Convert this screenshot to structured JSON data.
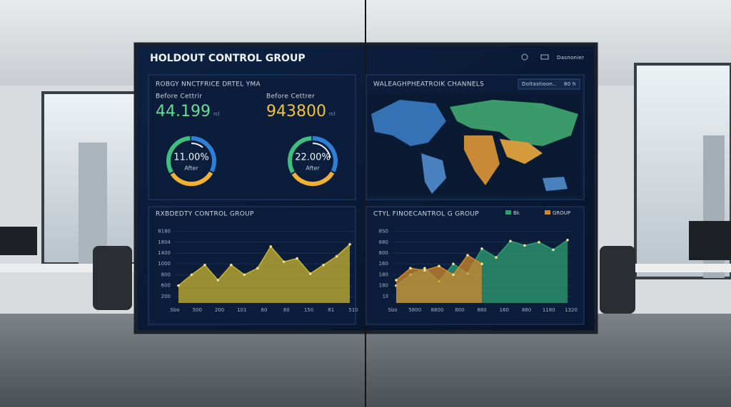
{
  "header": {
    "title": "HOLDOUT CONTROL GROUP",
    "menu": "Dasnonier"
  },
  "panels": [
    {
      "title": "ROBGY NNCTFRICE DRTEL YMA",
      "kpis": [
        {
          "label": "Before Cettrir",
          "value": 44.199,
          "unit": "rcl"
        },
        {
          "label": "Before Cettrer",
          "value": 943800,
          "unit": "rcl"
        }
      ],
      "gauges": [
        {
          "value": 11,
          "label": "11.00%",
          "sublabel": "After"
        },
        {
          "value": 22,
          "label": "22.00%",
          "sublabel": "After"
        }
      ]
    },
    {
      "title": "WALEAGHPHEATROIK CHANNELS",
      "filter": "Doltastioon..",
      "range": "80 h"
    },
    {
      "title": "RXBDEDTY CONTROL GROUP",
      "chart": {
        "ylim": [
          -0.6,
          6.3
        ],
        "yticks": [
          {
            "value": 0,
            "label": "200"
          },
          {
            "value": 1,
            "label": "600"
          },
          {
            "value": 2,
            "label": "800"
          },
          {
            "value": 3,
            "label": "1000"
          },
          {
            "value": 4,
            "label": "1400"
          },
          {
            "value": 5,
            "label": "1804"
          },
          {
            "value": 6,
            "label": "8180"
          }
        ],
        "xlabels": [
          "Sbo",
          "500",
          "200",
          "101",
          "60",
          "80",
          "150",
          "81",
          "510"
        ],
        "series": [
          {
            "color": "#c9b431",
            "values": [
              1.0,
              2.0,
              2.9,
              1.5,
              2.9,
              2.0,
              2.6,
              4.6,
              3.2,
              3.5,
              2.1,
              2.9,
              3.7,
              4.8
            ]
          }
        ]
      }
    },
    {
      "title": "CTYL FINOECANTROL G GROUP",
      "chart": {
        "ylim": [
          -0.6,
          6.3
        ],
        "yticks": [
          {
            "value": 0,
            "label": "1ll"
          },
          {
            "value": 1,
            "label": "180"
          },
          {
            "value": 2,
            "label": "180"
          },
          {
            "value": 3,
            "label": "160"
          },
          {
            "value": 4,
            "label": "800"
          },
          {
            "value": 5,
            "label": "880"
          },
          {
            "value": 6,
            "label": "8S0"
          }
        ],
        "xlabels": [
          "Sbo",
          "5800",
          "8800",
          "800",
          "880",
          "160",
          "880",
          "1180",
          "1320"
        ],
        "series": [
          {
            "name": "Bk",
            "color": "#2f9e72",
            "values": [
              1.0,
              2.0,
              2.6,
              1.4,
              3.0,
              2.1,
              4.4,
              3.6,
              5.1,
              4.7,
              5.0,
              4.3,
              5.2
            ]
          },
          {
            "name": "GROUP",
            "color": "#d08a2c",
            "values": [
              1.5,
              2.6,
              2.4,
              2.8,
              2.0,
              3.8,
              3.0
            ]
          }
        ]
      }
    }
  ]
}
